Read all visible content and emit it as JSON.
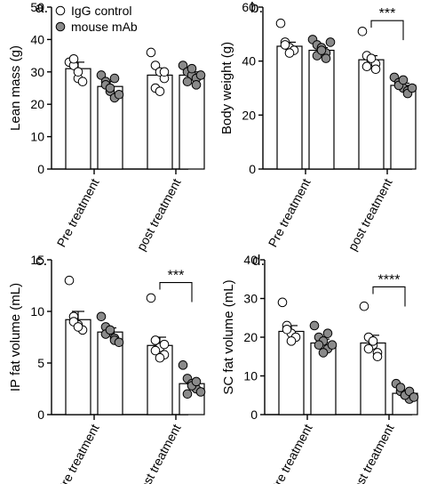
{
  "chart_data": [
    {
      "panel_label": "a.",
      "type": "bar",
      "ylabel": "Lean mass (g)",
      "ylim": [
        0,
        50
      ],
      "yticks": [
        0,
        10,
        20,
        30,
        40,
        50
      ],
      "categories": [
        "Pre treatment",
        "post treatment"
      ],
      "legend": [
        "IgG control",
        "mouse mAb"
      ],
      "series": [
        {
          "name": "IgG control",
          "means": [
            31,
            29
          ],
          "sem": [
            2,
            2
          ],
          "points": [
            [
              33,
              32,
              28,
              27,
              34,
              30
            ],
            [
              36,
              32,
              30,
              28,
              25,
              24,
              30
            ]
          ]
        },
        {
          "name": "mouse mAb",
          "means": [
            25.5,
            29
          ],
          "sem": [
            1.5,
            1
          ],
          "points": [
            [
              29,
              27,
              24,
              22,
              26,
              25,
              28,
              23
            ],
            [
              32,
              30,
              29,
              28,
              27,
              31,
              26,
              29
            ]
          ]
        }
      ],
      "significance": []
    },
    {
      "panel_label": "b.",
      "type": "bar",
      "ylabel": "Body weight (g)",
      "ylim": [
        0,
        60
      ],
      "yticks": [
        0,
        20,
        40,
        60
      ],
      "categories": [
        "Pre treatment",
        "post treatment"
      ],
      "series": [
        {
          "name": "IgG control",
          "means": [
            45.5,
            40.5
          ],
          "sem": [
            1.5,
            1.5
          ],
          "points": [
            [
              54,
              47,
              45,
              44,
              46,
              43
            ],
            [
              51,
              42,
              40,
              39,
              38,
              41,
              37
            ]
          ]
        },
        {
          "name": "mouse mAb",
          "means": [
            44,
            31
          ],
          "sem": [
            1,
            0.8
          ],
          "points": [
            [
              48,
              46,
              45,
              43,
              42,
              44,
              41,
              47
            ],
            [
              34,
              32,
              30,
              29,
              31,
              33,
              28,
              30
            ]
          ]
        }
      ],
      "significance": [
        {
          "category": "post treatment",
          "label": "***",
          "y": 55
        }
      ]
    },
    {
      "panel_label": "c.",
      "type": "bar",
      "ylabel": "IP fat volume (mL)",
      "ylim": [
        0,
        15
      ],
      "yticks": [
        0,
        5,
        10,
        15
      ],
      "categories": [
        "Pre treatment",
        "post treatment"
      ],
      "series": [
        {
          "name": "IgG control",
          "means": [
            9.2,
            6.7
          ],
          "sem": [
            0.8,
            0.8
          ],
          "points": [
            [
              13,
              9.5,
              8.7,
              8.2,
              9,
              8.5
            ],
            [
              11.3,
              7.2,
              6.5,
              5.8,
              6.2,
              5.5,
              6.8
            ]
          ]
        },
        {
          "name": "mouse mAb",
          "means": [
            8,
            3
          ],
          "sem": [
            0.4,
            0.4
          ],
          "points": [
            [
              9.5,
              8.5,
              8,
              7.4,
              7.8,
              8.2,
              7.2,
              7
            ],
            [
              4.8,
              3.5,
              3,
              2.5,
              2,
              2.8,
              3.2,
              2.2
            ]
          ]
        }
      ],
      "significance": [
        {
          "category": "post treatment",
          "label": "***",
          "y": 12.8
        }
      ]
    },
    {
      "panel_label": "d.",
      "type": "bar",
      "ylabel": "SC fat volume (mL)",
      "ylim": [
        0,
        40
      ],
      "yticks": [
        0,
        10,
        20,
        30,
        40
      ],
      "categories": [
        "Pre treatment",
        "post treatment"
      ],
      "series": [
        {
          "name": "IgG control",
          "means": [
            21.5,
            18.5
          ],
          "sem": [
            1.5,
            2
          ],
          "points": [
            [
              29,
              23,
              21,
              20,
              22,
              19
            ],
            [
              28,
              20,
              18,
              16,
              17,
              19,
              15
            ]
          ]
        },
        {
          "name": "mouse mAb",
          "means": [
            18.5,
            5.5
          ],
          "sem": [
            1,
            0.6
          ],
          "points": [
            [
              23,
              20,
              19,
              17,
              18,
              16,
              21,
              18
            ],
            [
              8,
              6,
              5,
              4,
              7,
              5,
              6,
              4.5
            ]
          ]
        }
      ],
      "significance": [
        {
          "category": "post treatment",
          "label": "****",
          "y": 33
        }
      ]
    }
  ]
}
